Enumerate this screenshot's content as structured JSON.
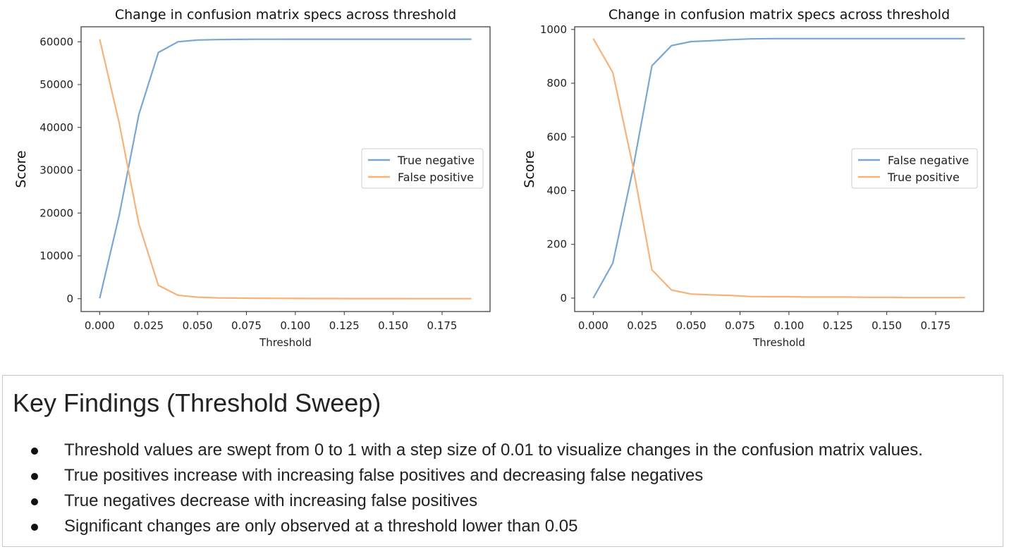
{
  "chart_data": [
    {
      "type": "line",
      "title": "Change in confusion matrix specs across threshold",
      "xlabel": "Threshold",
      "ylabel": "Score",
      "xlim": [
        -0.0095,
        0.1995
      ],
      "ylim": [
        -3000,
        63500
      ],
      "x_ticks": [
        0.0,
        0.025,
        0.05,
        0.075,
        0.1,
        0.125,
        0.15,
        0.175
      ],
      "x_tick_labels": [
        "0.000",
        "0.025",
        "0.050",
        "0.075",
        "0.100",
        "0.125",
        "0.150",
        "0.175"
      ],
      "y_ticks": [
        0,
        10000,
        20000,
        30000,
        40000,
        50000,
        60000
      ],
      "y_tick_labels": [
        "0",
        "10000",
        "20000",
        "30000",
        "40000",
        "50000",
        "60000"
      ],
      "legend_position": "center-right",
      "grid": false,
      "x": [
        0.0,
        0.01,
        0.02,
        0.03,
        0.04,
        0.05,
        0.06,
        0.07,
        0.08,
        0.09,
        0.1,
        0.11,
        0.12,
        0.13,
        0.14,
        0.15,
        0.16,
        0.17,
        0.18,
        0.19
      ],
      "series": [
        {
          "name": "True negative",
          "color": "#7aa6d3",
          "values": [
            100,
            19500,
            43000,
            57500,
            60000,
            60400,
            60500,
            60550,
            60580,
            60590,
            60600,
            60600,
            60600,
            60600,
            60600,
            60600,
            60600,
            60600,
            60600,
            60600
          ]
        },
        {
          "name": "False positive",
          "color": "#f7b27a",
          "values": [
            60600,
            41000,
            17500,
            3100,
            800,
            350,
            200,
            150,
            100,
            80,
            60,
            50,
            40,
            35,
            30,
            25,
            20,
            15,
            10,
            5
          ]
        }
      ]
    },
    {
      "type": "line",
      "title": "Change in confusion matrix specs across threshold",
      "xlabel": "Threshold",
      "ylabel": "Score",
      "xlim": [
        -0.0095,
        0.1995
      ],
      "ylim": [
        -50,
        1010
      ],
      "x_ticks": [
        0.0,
        0.025,
        0.05,
        0.075,
        0.1,
        0.125,
        0.15,
        0.175
      ],
      "x_tick_labels": [
        "0.000",
        "0.025",
        "0.050",
        "0.075",
        "0.100",
        "0.125",
        "0.150",
        "0.175"
      ],
      "y_ticks": [
        0,
        200,
        400,
        600,
        800,
        1000
      ],
      "y_tick_labels": [
        "0",
        "200",
        "400",
        "600",
        "800",
        "1000"
      ],
      "legend_position": "center-right",
      "grid": false,
      "x": [
        0.0,
        0.01,
        0.02,
        0.03,
        0.04,
        0.05,
        0.06,
        0.07,
        0.08,
        0.09,
        0.1,
        0.11,
        0.12,
        0.13,
        0.14,
        0.15,
        0.16,
        0.17,
        0.18,
        0.19
      ],
      "series": [
        {
          "name": "False negative",
          "color": "#7aa6d3",
          "values": [
            0,
            130,
            470,
            865,
            940,
            955,
            958,
            962,
            965,
            966,
            966,
            966,
            966,
            966,
            966,
            966,
            966,
            966,
            966,
            966
          ]
        },
        {
          "name": "True positive",
          "color": "#f7b27a",
          "values": [
            966,
            840,
            500,
            105,
            30,
            15,
            12,
            10,
            6,
            5,
            5,
            4,
            4,
            4,
            3,
            3,
            2,
            2,
            2,
            2
          ]
        }
      ]
    }
  ],
  "findings": {
    "title": "Key Findings (Threshold Sweep)",
    "items": [
      "Threshold values are swept from 0 to 1 with a step size of 0.01 to visualize changes in the confusion matrix values.",
      "True positives increase with increasing false positives and decreasing false negatives",
      "True negatives decrease with increasing false positives",
      "Significant changes are only observed at a threshold lower than 0.05"
    ]
  }
}
